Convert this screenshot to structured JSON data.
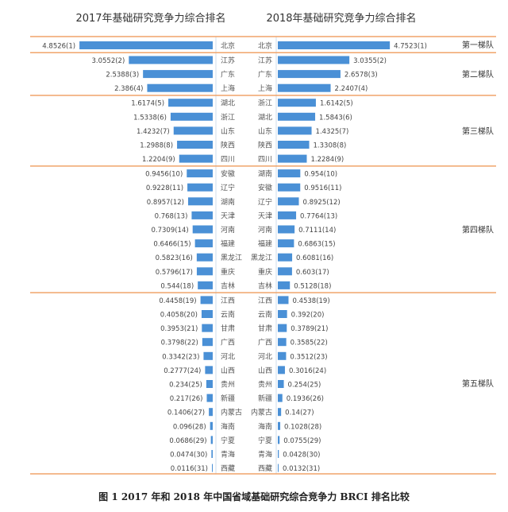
{
  "chart_data": {
    "type": "bar",
    "orientation": "horizontal-butterfly",
    "titles": [
      "2017年基础研究竞争力综合排名",
      "2018年基础研究竞争力综合排名"
    ],
    "caption": "图 1   2017 年和 2018 年中国省域基础研究综合竞争力 BRCI 排名比较",
    "bar_color": "#4a90d6",
    "separator_color": "#f0a46a",
    "left": {
      "year": "2017",
      "provinces": [
        "北京",
        "江苏",
        "广东",
        "上海",
        "湖北",
        "浙江",
        "山东",
        "陕西",
        "四川",
        "安徽",
        "辽宁",
        "湖南",
        "天津",
        "河南",
        "福建",
        "黑龙江",
        "重庆",
        "吉林",
        "江西",
        "云南",
        "甘肃",
        "广西",
        "河北",
        "山西",
        "贵州",
        "新疆",
        "内蒙古",
        "海南",
        "宁夏",
        "青海",
        "西藏"
      ],
      "values": [
        4.8526,
        3.0552,
        2.5388,
        2.386,
        1.6174,
        1.5338,
        1.4232,
        1.2988,
        1.2204,
        0.9456,
        0.9228,
        0.8957,
        0.768,
        0.7309,
        0.6466,
        0.5823,
        0.5796,
        0.544,
        0.4458,
        0.4058,
        0.3953,
        0.3798,
        0.3342,
        0.2777,
        0.234,
        0.217,
        0.1406,
        0.096,
        0.0686,
        0.0474,
        0.0116
      ],
      "labels": [
        "4.8526(1)",
        "3.0552(2)",
        "2.5388(3)",
        "2.386(4)",
        "1.6174(5)",
        "1.5338(6)",
        "1.4232(7)",
        "1.2988(8)",
        "1.2204(9)",
        "0.9456(10)",
        "0.9228(11)",
        "0.8957(12)",
        "0.768(13)",
        "0.7309(14)",
        "0.6466(15)",
        "0.5823(16)",
        "0.5796(17)",
        "0.544(18)",
        "0.4458(19)",
        "0.4058(20)",
        "0.3953(21)",
        "0.3798(22)",
        "0.3342(23)",
        "0.2777(24)",
        "0.234(25)",
        "0.217(26)",
        "0.1406(27)",
        "0.096(28)",
        "0.0686(29)",
        "0.0474(30)",
        "0.0116(31)"
      ]
    },
    "right": {
      "year": "2018",
      "provinces": [
        "北京",
        "江苏",
        "广东",
        "上海",
        "浙江",
        "湖北",
        "山东",
        "陕西",
        "四川",
        "湖南",
        "安徽",
        "辽宁",
        "天津",
        "河南",
        "福建",
        "黑龙江",
        "重庆",
        "吉林",
        "江西",
        "云南",
        "甘肃",
        "广西",
        "河北",
        "山西",
        "贵州",
        "新疆",
        "内蒙古",
        "海南",
        "宁夏",
        "青海",
        "西藏"
      ],
      "values": [
        4.7523,
        3.0355,
        2.6578,
        2.2407,
        1.6142,
        1.5843,
        1.4325,
        1.3308,
        1.2284,
        0.954,
        0.9516,
        0.8925,
        0.7764,
        0.7111,
        0.6863,
        0.6081,
        0.603,
        0.5128,
        0.4538,
        0.392,
        0.3789,
        0.3585,
        0.3512,
        0.3016,
        0.254,
        0.1936,
        0.14,
        0.1028,
        0.0755,
        0.0428,
        0.0132
      ],
      "labels": [
        "4.7523(1)",
        "3.0355(2)",
        "2.6578(3)",
        "2.2407(4)",
        "1.6142(5)",
        "1.5843(6)",
        "1.4325(7)",
        "1.3308(8)",
        "1.2284(9)",
        "0.954(10)",
        "0.9516(11)",
        "0.8925(12)",
        "0.7764(13)",
        "0.7111(14)",
        "0.6863(15)",
        "0.6081(16)",
        "0.603(17)",
        "0.5128(18)",
        "0.4538(19)",
        "0.392(20)",
        "0.3789(21)",
        "0.3585(22)",
        "0.3512(23)",
        "0.3016(24)",
        "0.254(25)",
        "0.1936(26)",
        "0.14(27)",
        "0.1028(28)",
        "0.0755(29)",
        "0.0428(30)",
        "0.0132(31)"
      ]
    },
    "tiers": [
      {
        "label": "第一梯队",
        "from_rank": 1,
        "to_rank": 1
      },
      {
        "label": "第二梯队",
        "from_rank": 2,
        "to_rank": 4
      },
      {
        "label": "第三梯队",
        "from_rank": 5,
        "to_rank": 9
      },
      {
        "label": "第四梯队",
        "from_rank": 10,
        "to_rank": 18
      },
      {
        "label": "第五梯队",
        "from_rank": 19,
        "to_rank": 31
      }
    ]
  }
}
